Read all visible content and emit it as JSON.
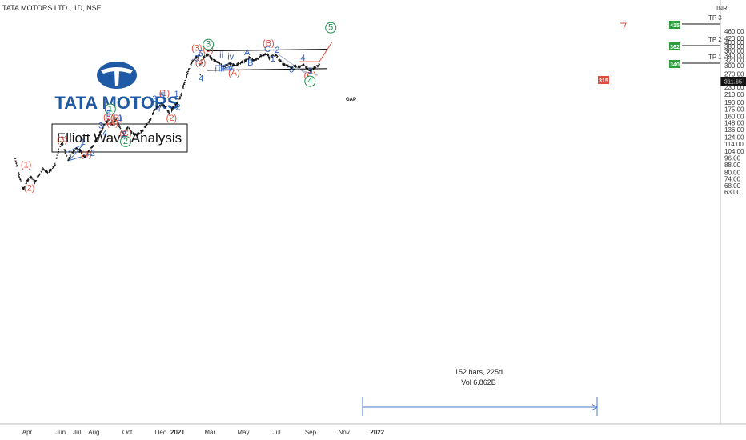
{
  "header": {
    "symbol_label": "TATA MOTORS LTD., 1D, NSE",
    "currency_label": "INR"
  },
  "logo": {
    "text": "TATA MOTORS",
    "brand_color": "#1f5aa6"
  },
  "title_box": {
    "text": "Elliott Wave Analysis"
  },
  "stats": {
    "bars_label": "152 bars, 225d",
    "vol_label": "Vol 6.862B"
  },
  "annotations": {
    "gap_label": "GAP"
  },
  "targets": [
    {
      "name": "TP 3",
      "value": "415"
    },
    {
      "name": "TP 2",
      "value": "362"
    },
    {
      "name": "TP 1",
      "value": "340"
    }
  ],
  "markers": {
    "projection_value": "315",
    "last_price": "311.65"
  },
  "chart_data": {
    "type": "ohlc",
    "symbol": "TATA MOTORS LTD.",
    "interval": "1D",
    "exchange": "NSE",
    "y_scale": "log",
    "ylim": [
      60,
      460
    ],
    "y_ticks": [
      "460.00",
      "420.00",
      "400.00",
      "380.00",
      "360.00",
      "340.00",
      "320.00",
      "300.00",
      "270.00",
      "250.00",
      "230.00",
      "210.00",
      "190.00",
      "175.00",
      "160.00",
      "148.00",
      "136.00",
      "124.00",
      "114.00",
      "104.00",
      "96.00",
      "88.00",
      "80.00",
      "74.00",
      "68.00",
      "63.00"
    ],
    "x_ticks": [
      "Apr",
      "Jun",
      "Jul",
      "Aug",
      "Oct",
      "Dec",
      "2021",
      "Mar",
      "May",
      "Jul",
      "Sep",
      "Nov",
      "2022"
    ],
    "x_tick_dates": [
      "2020-04-01",
      "2020-06-01",
      "2020-07-01",
      "2020-08-01",
      "2020-10-01",
      "2020-12-01",
      "2021-01-01",
      "2021-03-01",
      "2021-05-01",
      "2021-07-01",
      "2021-09-01",
      "2021-11-01",
      "2022-01-01"
    ],
    "price_path": [
      [
        "2020-03-10",
        95
      ],
      [
        "2020-03-18",
        75
      ],
      [
        "2020-03-25",
        65
      ],
      [
        "2020-04-01",
        72
      ],
      [
        "2020-04-08",
        76
      ],
      [
        "2020-04-15",
        71
      ],
      [
        "2020-04-22",
        77
      ],
      [
        "2020-04-30",
        84
      ],
      [
        "2020-05-08",
        80
      ],
      [
        "2020-05-15",
        83
      ],
      [
        "2020-05-22",
        88
      ],
      [
        "2020-05-28",
        104
      ],
      [
        "2020-06-04",
        116
      ],
      [
        "2020-06-10",
        102
      ],
      [
        "2020-06-15",
        93
      ],
      [
        "2020-06-22",
        102
      ],
      [
        "2020-06-30",
        108
      ],
      [
        "2020-07-08",
        105
      ],
      [
        "2020-07-15",
        97
      ],
      [
        "2020-07-22",
        104
      ],
      [
        "2020-07-31",
        112
      ],
      [
        "2020-08-07",
        122
      ],
      [
        "2020-08-14",
        133
      ],
      [
        "2020-08-21",
        146
      ],
      [
        "2020-08-28",
        153
      ],
      [
        "2020-09-04",
        144
      ],
      [
        "2020-09-11",
        155
      ],
      [
        "2020-09-18",
        138
      ],
      [
        "2020-09-25",
        128
      ],
      [
        "2020-10-02",
        140
      ],
      [
        "2020-10-09",
        132
      ],
      [
        "2020-10-16",
        127
      ],
      [
        "2020-10-23",
        130
      ],
      [
        "2020-10-30",
        135
      ],
      [
        "2020-11-06",
        145
      ],
      [
        "2020-11-13",
        155
      ],
      [
        "2020-11-20",
        175
      ],
      [
        "2020-11-27",
        181
      ],
      [
        "2020-12-04",
        185
      ],
      [
        "2020-12-11",
        180
      ],
      [
        "2020-12-18",
        165
      ],
      [
        "2020-12-24",
        178
      ],
      [
        "2021-01-01",
        190
      ],
      [
        "2021-01-08",
        210
      ],
      [
        "2021-01-15",
        250
      ],
      [
        "2021-01-22",
        290
      ],
      [
        "2021-01-29",
        320
      ],
      [
        "2021-02-05",
        335
      ],
      [
        "2021-02-10",
        340
      ],
      [
        "2021-02-12",
        270
      ],
      [
        "2021-02-16",
        325
      ],
      [
        "2021-02-24",
        346
      ],
      [
        "2021-03-03",
        332
      ],
      [
        "2021-03-10",
        318
      ],
      [
        "2021-03-17",
        312
      ],
      [
        "2021-03-24",
        295
      ],
      [
        "2021-03-31",
        300
      ],
      [
        "2021-04-07",
        310
      ],
      [
        "2021-04-14",
        300
      ],
      [
        "2021-04-21",
        305
      ],
      [
        "2021-04-28",
        312
      ],
      [
        "2021-05-05",
        320
      ],
      [
        "2021-05-12",
        333
      ],
      [
        "2021-05-19",
        322
      ],
      [
        "2021-05-26",
        325
      ],
      [
        "2021-06-02",
        338
      ],
      [
        "2021-06-09",
        342
      ],
      [
        "2021-06-14",
        346
      ],
      [
        "2021-06-18",
        330
      ],
      [
        "2021-06-24",
        340
      ],
      [
        "2021-06-30",
        342
      ],
      [
        "2021-07-07",
        320
      ],
      [
        "2021-07-14",
        305
      ],
      [
        "2021-07-21",
        298
      ],
      [
        "2021-07-28",
        292
      ],
      [
        "2021-08-04",
        300
      ],
      [
        "2021-08-11",
        294
      ],
      [
        "2021-08-18",
        303
      ],
      [
        "2021-08-24",
        294
      ],
      [
        "2021-08-31",
        280
      ],
      [
        "2021-09-07",
        290
      ],
      [
        "2021-09-14",
        298
      ],
      [
        "2021-09-20",
        311.65
      ]
    ],
    "waves": [
      {
        "label": "(1)",
        "color": "red",
        "date": "2020-03-30",
        "price": 85,
        "pos": "above"
      },
      {
        "label": "(2)",
        "color": "red",
        "date": "2020-04-05",
        "price": 64,
        "pos": "below"
      },
      {
        "label": "(3)",
        "color": "red",
        "date": "2020-06-04",
        "price": 116,
        "pos": "above"
      },
      {
        "label": "(4)",
        "color": "red",
        "date": "2020-07-18",
        "price": 97,
        "pos": "below"
      },
      {
        "label": "(5)",
        "color": "red",
        "date": "2020-08-28",
        "price": 153,
        "pos": "above"
      },
      {
        "label": "(A)",
        "color": "red",
        "date": "2020-09-04",
        "price": 142,
        "pos": "below"
      },
      {
        "label": "(B)",
        "color": "red",
        "date": "2020-09-11",
        "price": 152,
        "pos": "above"
      },
      {
        "label": "(C)",
        "color": "red",
        "date": "2020-09-28",
        "price": 126,
        "pos": "below"
      },
      {
        "label": "1",
        "color": "green",
        "date": "2020-08-31",
        "price": 170,
        "pos": "above"
      },
      {
        "label": "2",
        "color": "green",
        "date": "2020-09-28",
        "price": 114,
        "pos": "below"
      },
      {
        "label": "(1)",
        "color": "red",
        "date": "2020-12-08",
        "price": 206,
        "pos": "above"
      },
      {
        "label": "(2)",
        "color": "red",
        "date": "2020-12-21",
        "price": 152,
        "pos": "below"
      },
      {
        "label": "(3)",
        "color": "red",
        "date": "2021-02-05",
        "price": 360,
        "pos": "above"
      },
      {
        "label": "(4)",
        "color": "red",
        "date": "2021-02-12",
        "price": 302,
        "pos": "below"
      },
      {
        "label": "(5)",
        "color": "red",
        "date": "2021-02-26",
        "price": 355,
        "pos": "above"
      },
      {
        "label": "3",
        "color": "green",
        "date": "2021-02-26",
        "price": 378,
        "pos": "above"
      },
      {
        "label": "(A)",
        "color": "red",
        "date": "2021-04-14",
        "price": 265,
        "pos": "below"
      },
      {
        "label": "(B)",
        "color": "red",
        "date": "2021-06-16",
        "price": 382,
        "pos": "above"
      },
      {
        "label": "(C)",
        "color": "red",
        "date": "2021-08-31",
        "price": 258,
        "pos": "below"
      },
      {
        "label": "4",
        "color": "green",
        "date": "2021-08-31",
        "price": 240,
        "pos": "below"
      },
      {
        "label": "5",
        "color": "green",
        "date": "2021-10-08",
        "price": 465,
        "pos": "above"
      },
      {
        "label": "1",
        "color": "blue",
        "date": "2020-07-12",
        "price": 113,
        "pos": "above"
      },
      {
        "label": "2",
        "color": "blue",
        "date": "2020-07-30",
        "price": 98,
        "pos": "below"
      },
      {
        "label": "3",
        "color": "blue",
        "date": "2020-08-14",
        "price": 138,
        "pos": "above"
      },
      {
        "label": "4",
        "color": "blue",
        "date": "2020-08-21",
        "price": 126,
        "pos": "below"
      },
      {
        "label": "5",
        "color": "blue",
        "date": "2020-08-28",
        "price": 160,
        "pos": "above"
      },
      {
        "label": "1",
        "color": "blue",
        "date": "2020-09-18",
        "price": 152,
        "pos": "above"
      },
      {
        "label": "2",
        "color": "blue",
        "date": "2020-09-25",
        "price": 124,
        "pos": "below"
      },
      {
        "label": "3",
        "color": "blue",
        "date": "2020-11-20",
        "price": 192,
        "pos": "above"
      },
      {
        "label": "4",
        "color": "blue",
        "date": "2020-11-27",
        "price": 170,
        "pos": "below"
      },
      {
        "label": "5",
        "color": "blue",
        "date": "2020-12-04",
        "price": 200,
        "pos": "above"
      },
      {
        "label": "1",
        "color": "blue",
        "date": "2020-12-30",
        "price": 204,
        "pos": "above"
      },
      {
        "label": "2",
        "color": "blue",
        "date": "2021-01-02",
        "price": 173,
        "pos": "below"
      },
      {
        "label": "3",
        "color": "blue",
        "date": "2021-02-05",
        "price": 317,
        "pos": "above"
      },
      {
        "label": "4",
        "color": "blue",
        "date": "2021-02-13",
        "price": 248,
        "pos": "below"
      },
      {
        "label": "5",
        "color": "blue",
        "date": "2021-02-12",
        "price": 337,
        "pos": "above"
      },
      {
        "label": "i",
        "color": "blue",
        "date": "2021-03-12",
        "price": 278,
        "pos": "below"
      },
      {
        "label": "ii",
        "color": "blue",
        "date": "2021-03-22",
        "price": 330,
        "pos": "above"
      },
      {
        "label": "iii",
        "color": "blue",
        "date": "2021-03-22",
        "price": 278,
        "pos": "below"
      },
      {
        "label": "iv",
        "color": "blue",
        "date": "2021-04-08",
        "price": 323,
        "pos": "above"
      },
      {
        "label": "v",
        "color": "blue",
        "date": "2021-04-08",
        "price": 280,
        "pos": "below"
      },
      {
        "label": "A",
        "color": "blue",
        "date": "2021-05-08",
        "price": 341,
        "pos": "above"
      },
      {
        "label": "B",
        "color": "blue",
        "date": "2021-05-14",
        "price": 300,
        "pos": "below"
      },
      {
        "label": "C",
        "color": "blue",
        "date": "2021-06-14",
        "price": 355,
        "pos": "above"
      },
      {
        "label": "1",
        "color": "blue",
        "date": "2021-06-24",
        "price": 316,
        "pos": "below"
      },
      {
        "label": "2",
        "color": "blue",
        "date": "2021-07-02",
        "price": 351,
        "pos": "above"
      },
      {
        "label": "3",
        "color": "blue",
        "date": "2021-07-28",
        "price": 276,
        "pos": "below"
      },
      {
        "label": "4",
        "color": "blue",
        "date": "2021-08-18",
        "price": 318,
        "pos": "above"
      },
      {
        "label": "5",
        "color": "blue",
        "date": "2021-08-31",
        "price": 272,
        "pos": "below"
      }
    ]
  }
}
